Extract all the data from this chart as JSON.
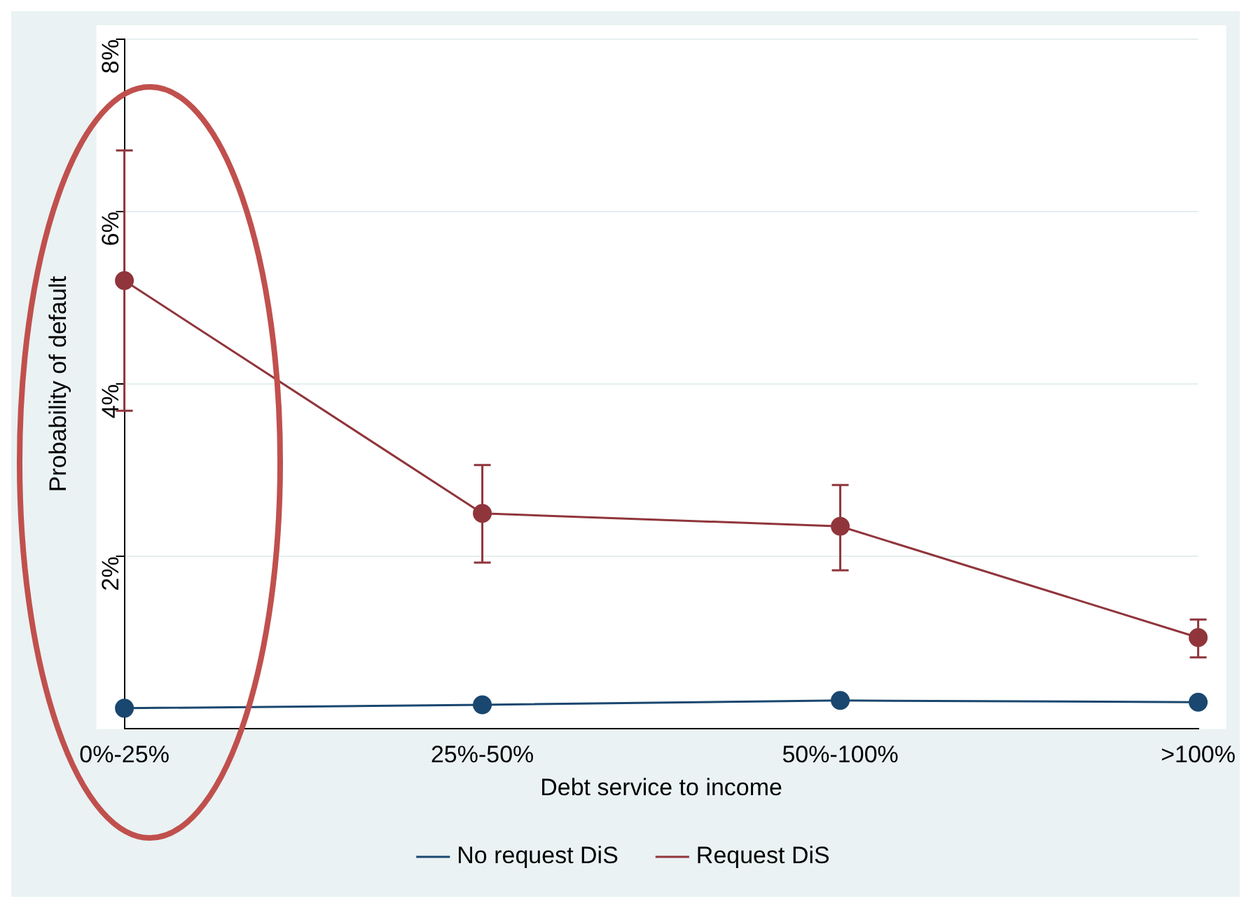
{
  "chart_data": {
    "type": "line",
    "xlabel": "Debt service to income",
    "ylabel": "Probability of default",
    "categories": [
      "0%-25%",
      "25%-50%",
      "50%-100%",
      ">100%"
    ],
    "ylim": [
      0,
      8
    ],
    "yticks": [
      {
        "value": 2,
        "label": "2%"
      },
      {
        "value": 4,
        "label": "4%"
      },
      {
        "value": 6,
        "label": "6%"
      },
      {
        "value": 8,
        "label": "8%"
      }
    ],
    "grid": "y",
    "legend": "bottom",
    "marker": "circle",
    "line_style": "solid",
    "series": [
      {
        "name": "No request DiS",
        "color": "#1a476f",
        "values": [
          0.24,
          0.28,
          0.33,
          0.31
        ]
      },
      {
        "name": "Request DiS",
        "color": "#90353b",
        "values": [
          5.2,
          2.5,
          2.35,
          1.06
        ],
        "errors": [
          [
            3.69,
            6.71
          ],
          [
            1.93,
            3.06
          ],
          [
            1.84,
            2.83
          ],
          [
            0.83,
            1.27
          ]
        ]
      }
    ]
  }
}
